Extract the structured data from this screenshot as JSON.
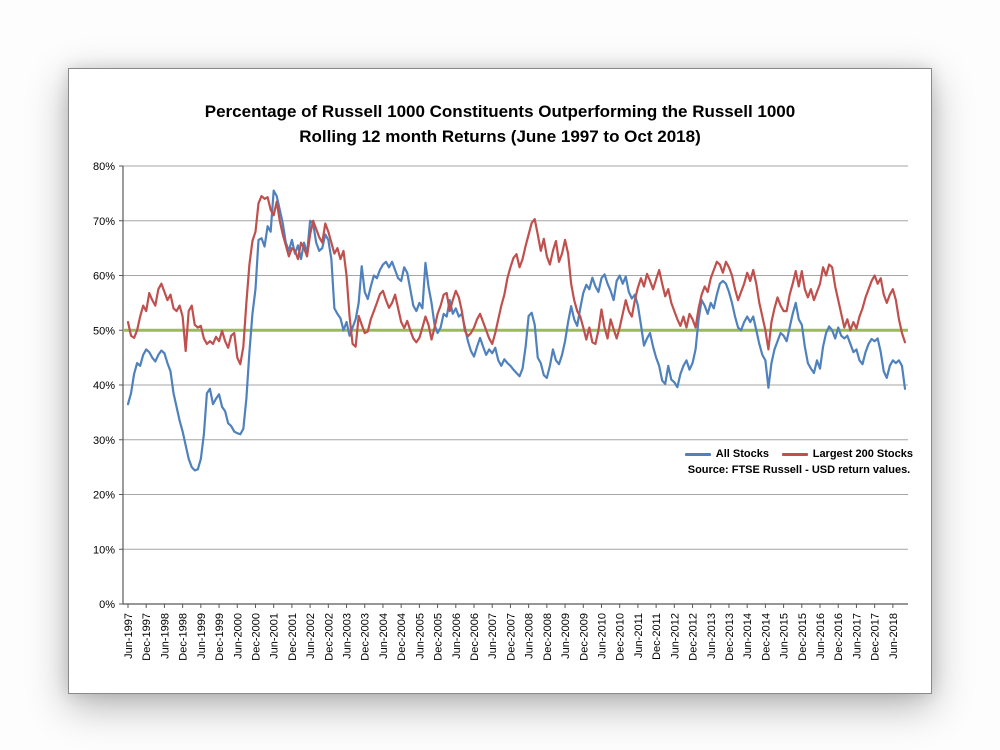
{
  "title": {
    "line1": "Percentage of Russell 1000 Constituents Outperforming the Russell 1000",
    "line2": "Rolling 12 month Returns (June 1997 to Oct 2018)"
  },
  "legend": {
    "items": [
      {
        "label": "All Stocks",
        "color": "#4F81BD"
      },
      {
        "label": "Largest 200 Stocks",
        "color": "#C0504D"
      }
    ],
    "source": "Source: FTSE Russell - USD return values."
  },
  "colors": {
    "all_stocks_line": "#4F81BD",
    "largest_200_line": "#C0504D",
    "fifty_pct_line": "#9BBB59",
    "gridline": "#A6A6A6",
    "axis": "#595959",
    "text": "#000000"
  },
  "chart_data": {
    "type": "line",
    "title": "Percentage of Russell 1000 Constituents Outperforming the Russell 1000 Rolling 12 month Returns (June 1997 to Oct 2018)",
    "x_unit": "month",
    "x_start": "Jun-1997",
    "x_end": "Oct-2018",
    "x_tick_labels": [
      "Jun-1997",
      "Dec-1997",
      "Jun-1998",
      "Dec-1998",
      "Jun-1999",
      "Dec-1999",
      "Jun-2000",
      "Dec-2000",
      "Jun-2001",
      "Dec-2001",
      "Jun-2002",
      "Dec-2002",
      "Jun-2003",
      "Dec-2003",
      "Jun-2004",
      "Dec-2004",
      "Jun-2005",
      "Dec-2005",
      "Jun-2006",
      "Dec-2006",
      "Jun-2007",
      "Dec-2007",
      "Jun-2008",
      "Dec-2008",
      "Jun-2009",
      "Dec-2009",
      "Jun-2010",
      "Dec-2010",
      "Jun-2011",
      "Dec-2011",
      "Jun-2012",
      "Dec-2012",
      "Jun-2013",
      "Dec-2013",
      "Jun-2014",
      "Dec-2014",
      "Jun-2015",
      "Dec-2015",
      "Jun-2016",
      "Dec-2016",
      "Jun-2017",
      "Dec-2017",
      "Jun-2018"
    ],
    "x_ticks_every_n_months": 6,
    "y_ticks": [
      "0%",
      "10%",
      "20%",
      "30%",
      "40%",
      "50%",
      "60%",
      "70%",
      "80%"
    ],
    "ylim": [
      0,
      80
    ],
    "grid": "horizontal",
    "legend_position": "inside-right",
    "reference_line": {
      "label": "50%",
      "value": 50,
      "color": "#9BBB59"
    },
    "series": [
      {
        "name": "All Stocks",
        "color": "#4F81BD",
        "values": [
          36.5,
          38.5,
          42,
          44,
          43.5,
          45.5,
          46.5,
          46,
          45,
          44.3,
          45.5,
          46.3,
          45.8,
          44,
          42.5,
          38.5,
          36,
          33.5,
          31.5,
          29,
          26.5,
          25,
          24.4,
          24.6,
          26.5,
          31,
          38.5,
          39.3,
          36.5,
          37.5,
          38.3,
          36,
          35.2,
          33,
          32.5,
          31.5,
          31.2,
          31,
          32,
          37.5,
          46,
          53,
          57.5,
          66.5,
          66.8,
          65.3,
          69,
          68,
          75.5,
          74.5,
          72,
          69.5,
          66,
          64.5,
          66.5,
          64,
          65.5,
          63,
          66,
          64,
          70,
          69.5,
          66,
          64.5,
          65,
          67.5,
          66.5,
          63,
          54,
          53,
          52.2,
          50,
          51.5,
          49,
          50.5,
          52,
          55,
          61.7,
          57,
          55.7,
          58,
          60,
          59.5,
          61,
          62,
          62.5,
          61.5,
          62.5,
          61,
          59.5,
          59,
          61.5,
          60.5,
          57.5,
          54.5,
          53.5,
          55,
          54,
          62.3,
          58,
          55,
          51,
          49.5,
          50.5,
          53,
          52.5,
          55.5,
          53,
          54,
          52.5,
          53,
          50.5,
          48,
          46.2,
          45.2,
          47,
          48.6,
          47,
          45.5,
          46.5,
          45.8,
          46.8,
          44.5,
          43.5,
          44.7,
          44,
          43.5,
          42.8,
          42.2,
          41.6,
          43,
          47,
          52.6,
          53.2,
          51,
          45,
          44,
          41.8,
          41.3,
          43.5,
          46.5,
          44.5,
          43.8,
          45.5,
          48,
          51.5,
          54.4,
          52,
          50.8,
          54,
          56.8,
          58.3,
          57.5,
          59.6,
          58,
          57,
          59.5,
          60.2,
          58.5,
          57.2,
          55.5,
          59,
          60,
          58.5,
          59.8,
          57,
          55.8,
          56.5,
          54.5,
          51,
          47.2,
          48.5,
          49.5,
          47,
          45,
          43.5,
          40.8,
          40.2,
          43.5,
          41,
          40.5,
          39.6,
          42,
          43.5,
          44.5,
          42.8,
          44,
          46.5,
          52,
          55.5,
          54.5,
          53,
          55,
          54,
          56.5,
          58.5,
          59,
          58.5,
          57,
          55,
          52.5,
          50.5,
          50,
          51.5,
          52.5,
          51.5,
          52.5,
          50,
          47.5,
          45.5,
          44.5,
          39.5,
          44,
          46.5,
          48,
          49.5,
          49,
          48,
          50.5,
          53,
          55,
          52,
          51,
          47,
          44,
          43,
          42.2,
          44.5,
          43,
          47,
          49.5,
          50.7,
          50,
          48.5,
          50.5,
          49,
          48.5,
          49,
          47.5,
          46,
          46.5,
          44.5,
          43.8,
          46,
          47.5,
          48.4,
          48,
          48.5,
          46,
          42.5,
          41.3,
          43.5,
          44.5,
          44,
          44.5,
          43.5,
          39.3
        ]
      },
      {
        "name": "Largest 200 Stocks",
        "color": "#C0504D",
        "values": [
          51.5,
          49,
          48.6,
          50,
          52.5,
          54.5,
          53.5,
          56.8,
          55.5,
          54.5,
          57.5,
          58.5,
          57,
          55.5,
          56.5,
          54,
          53.5,
          54.5,
          52.5,
          46.2,
          53.5,
          54.5,
          51,
          50.5,
          50.8,
          48.5,
          47.5,
          48,
          47.5,
          48.8,
          48,
          49.9,
          48,
          46.8,
          49,
          49.5,
          45,
          43.8,
          47,
          55,
          62,
          66.3,
          68,
          73.2,
          74.5,
          74,
          74.3,
          72,
          71,
          73.5,
          70,
          67.5,
          65.5,
          63.5,
          65,
          64.5,
          63,
          66,
          65,
          63.5,
          67.5,
          70,
          68.5,
          67,
          66,
          69.5,
          68,
          66,
          64,
          65,
          63,
          64.5,
          60,
          52.5,
          47.5,
          47,
          52.6,
          51,
          49.5,
          49.8,
          52,
          53.5,
          55,
          56.6,
          57.2,
          55.5,
          54.1,
          55,
          56.5,
          54,
          51.5,
          50.4,
          51.7,
          50,
          48.5,
          47.8,
          48.6,
          50.5,
          52.5,
          51,
          48.3,
          50.5,
          53,
          54.5,
          56.5,
          56.8,
          53.5,
          55.5,
          57.2,
          56,
          53.5,
          49.9,
          48.9,
          49.5,
          50.5,
          52,
          53,
          51.5,
          50,
          48.5,
          47.5,
          49.5,
          52,
          54.5,
          56.5,
          59.5,
          61.5,
          63.2,
          63.9,
          61.5,
          63,
          65.4,
          67.5,
          69.6,
          70.3,
          67.5,
          64.5,
          66.7,
          63.5,
          62,
          64.5,
          66.3,
          62.5,
          64,
          66.5,
          64,
          58.5,
          55.5,
          53.5,
          52.5,
          50.5,
          48.3,
          50.5,
          47.8,
          47.5,
          50,
          53.8,
          50.5,
          48.5,
          52,
          50.2,
          48.5,
          50.5,
          53,
          55.5,
          53.5,
          52.5,
          55.5,
          57.8,
          59.5,
          58,
          60.3,
          59,
          57.5,
          59.3,
          61,
          58.5,
          56.2,
          57.5,
          55,
          53.5,
          52,
          50.8,
          52.5,
          50.5,
          53,
          52,
          50.5,
          54,
          56.5,
          58,
          57,
          59.5,
          61,
          62.5,
          62,
          60.5,
          62.5,
          61.5,
          60,
          57.5,
          55.5,
          57,
          58.5,
          60.5,
          59,
          61,
          58.5,
          55,
          52.5,
          50,
          46.5,
          51.5,
          54,
          56,
          54.5,
          53.5,
          53.5,
          56.5,
          58.5,
          60.8,
          58,
          60.8,
          57.5,
          56,
          57.5,
          55.5,
          57,
          58.5,
          61.5,
          60,
          62,
          61.5,
          58,
          55.5,
          53,
          50.5,
          52,
          50,
          51.5,
          50.3,
          52.5,
          54,
          56,
          57.5,
          59,
          60,
          58.5,
          59.5,
          56.5,
          55,
          56.5,
          57.5,
          55.5,
          52,
          49.5,
          47.8
        ]
      }
    ]
  }
}
